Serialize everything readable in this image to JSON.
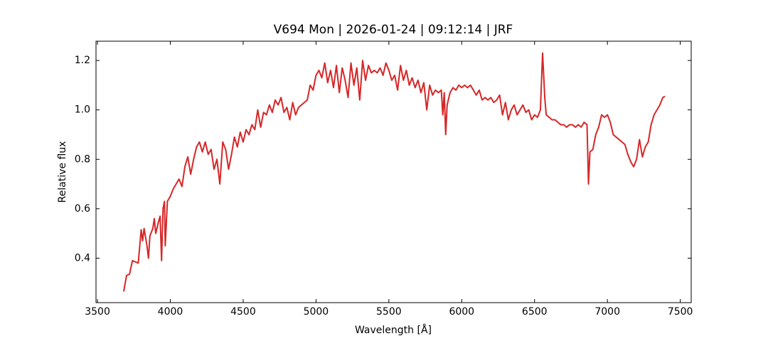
{
  "chart_data": {
    "type": "line",
    "title": "V694 Mon | 2026-01-24 | 09:12:14 | JRF",
    "xlabel": "Wavelength [Å]",
    "ylabel": "Relative flux",
    "xlim": [
      3490,
      7575
    ],
    "ylim": [
      0.22,
      1.278
    ],
    "xticks": [
      3500,
      4000,
      4500,
      5000,
      5500,
      6000,
      6500,
      7000,
      7500
    ],
    "yticks": [
      {
        "value": 0.4,
        "label": "0.4"
      },
      {
        "value": 0.6,
        "label": "0.6"
      },
      {
        "value": 0.8,
        "label": "0.8"
      },
      {
        "value": 1.0,
        "label": "1.0"
      },
      {
        "value": 1.2,
        "label": "1.2"
      }
    ],
    "grid": false,
    "series": [
      {
        "name": "V694 Mon",
        "color": "#d62728",
        "x": [
          3680,
          3700,
          3720,
          3740,
          3760,
          3780,
          3800,
          3810,
          3820,
          3840,
          3850,
          3860,
          3880,
          3890,
          3900,
          3920,
          3930,
          3940,
          3950,
          3960,
          3965,
          3980,
          4000,
          4020,
          4040,
          4060,
          4080,
          4100,
          4120,
          4140,
          4160,
          4180,
          4200,
          4220,
          4240,
          4260,
          4280,
          4300,
          4320,
          4340,
          4360,
          4380,
          4400,
          4420,
          4440,
          4460,
          4480,
          4500,
          4520,
          4540,
          4560,
          4580,
          4600,
          4620,
          4640,
          4660,
          4680,
          4700,
          4720,
          4740,
          4760,
          4780,
          4800,
          4820,
          4840,
          4860,
          4880,
          4900,
          4920,
          4940,
          4960,
          4980,
          5000,
          5020,
          5040,
          5060,
          5080,
          5100,
          5120,
          5140,
          5160,
          5180,
          5200,
          5220,
          5240,
          5260,
          5280,
          5300,
          5320,
          5340,
          5360,
          5380,
          5400,
          5420,
          5440,
          5460,
          5480,
          5500,
          5520,
          5540,
          5560,
          5580,
          5600,
          5620,
          5640,
          5660,
          5680,
          5700,
          5720,
          5740,
          5760,
          5780,
          5800,
          5820,
          5840,
          5860,
          5870,
          5880,
          5890,
          5900,
          5920,
          5940,
          5960,
          5980,
          6000,
          6020,
          6040,
          6060,
          6080,
          6100,
          6120,
          6140,
          6160,
          6180,
          6200,
          6220,
          6240,
          6260,
          6280,
          6300,
          6320,
          6340,
          6360,
          6380,
          6400,
          6420,
          6440,
          6460,
          6480,
          6500,
          6520,
          6540,
          6555,
          6570,
          6580,
          6600,
          6620,
          6640,
          6660,
          6680,
          6700,
          6720,
          6740,
          6760,
          6780,
          6800,
          6820,
          6840,
          6860,
          6870,
          6880,
          6900,
          6920,
          6940,
          6960,
          6980,
          7000,
          7020,
          7040,
          7060,
          7080,
          7100,
          7120,
          7140,
          7160,
          7180,
          7200,
          7220,
          7240,
          7260,
          7280,
          7300,
          7320,
          7340,
          7360,
          7380,
          7395
        ],
        "values": [
          0.265,
          0.33,
          0.335,
          0.39,
          0.385,
          0.38,
          0.515,
          0.47,
          0.52,
          0.45,
          0.4,
          0.49,
          0.52,
          0.56,
          0.5,
          0.55,
          0.57,
          0.39,
          0.6,
          0.63,
          0.45,
          0.63,
          0.65,
          0.68,
          0.7,
          0.72,
          0.69,
          0.77,
          0.81,
          0.74,
          0.8,
          0.85,
          0.87,
          0.83,
          0.87,
          0.82,
          0.84,
          0.76,
          0.8,
          0.7,
          0.87,
          0.84,
          0.76,
          0.82,
          0.89,
          0.85,
          0.91,
          0.87,
          0.92,
          0.9,
          0.94,
          0.92,
          1.0,
          0.93,
          0.99,
          0.98,
          1.02,
          0.99,
          1.04,
          1.02,
          1.05,
          0.99,
          1.01,
          0.96,
          1.03,
          0.98,
          1.01,
          1.02,
          1.03,
          1.04,
          1.1,
          1.08,
          1.14,
          1.16,
          1.13,
          1.19,
          1.11,
          1.16,
          1.09,
          1.18,
          1.07,
          1.17,
          1.12,
          1.05,
          1.19,
          1.1,
          1.17,
          1.04,
          1.2,
          1.12,
          1.18,
          1.15,
          1.16,
          1.15,
          1.17,
          1.14,
          1.19,
          1.16,
          1.12,
          1.14,
          1.08,
          1.18,
          1.12,
          1.16,
          1.1,
          1.13,
          1.09,
          1.12,
          1.07,
          1.11,
          1.0,
          1.1,
          1.06,
          1.08,
          1.07,
          1.08,
          0.98,
          1.07,
          0.9,
          1.02,
          1.07,
          1.09,
          1.08,
          1.1,
          1.09,
          1.1,
          1.09,
          1.1,
          1.08,
          1.06,
          1.08,
          1.04,
          1.05,
          1.04,
          1.05,
          1.03,
          1.04,
          1.06,
          0.98,
          1.03,
          0.96,
          1.0,
          1.02,
          0.98,
          1.0,
          1.02,
          0.99,
          1.0,
          0.96,
          0.98,
          0.97,
          1.0,
          1.23,
          1.05,
          0.98,
          0.97,
          0.96,
          0.96,
          0.95,
          0.94,
          0.94,
          0.93,
          0.94,
          0.94,
          0.93,
          0.94,
          0.93,
          0.95,
          0.94,
          0.7,
          0.83,
          0.84,
          0.9,
          0.93,
          0.98,
          0.97,
          0.98,
          0.95,
          0.9,
          0.89,
          0.88,
          0.87,
          0.86,
          0.82,
          0.79,
          0.77,
          0.8,
          0.88,
          0.81,
          0.85,
          0.87,
          0.94,
          0.98,
          1.0,
          1.02,
          1.05,
          1.055
        ]
      }
    ]
  }
}
